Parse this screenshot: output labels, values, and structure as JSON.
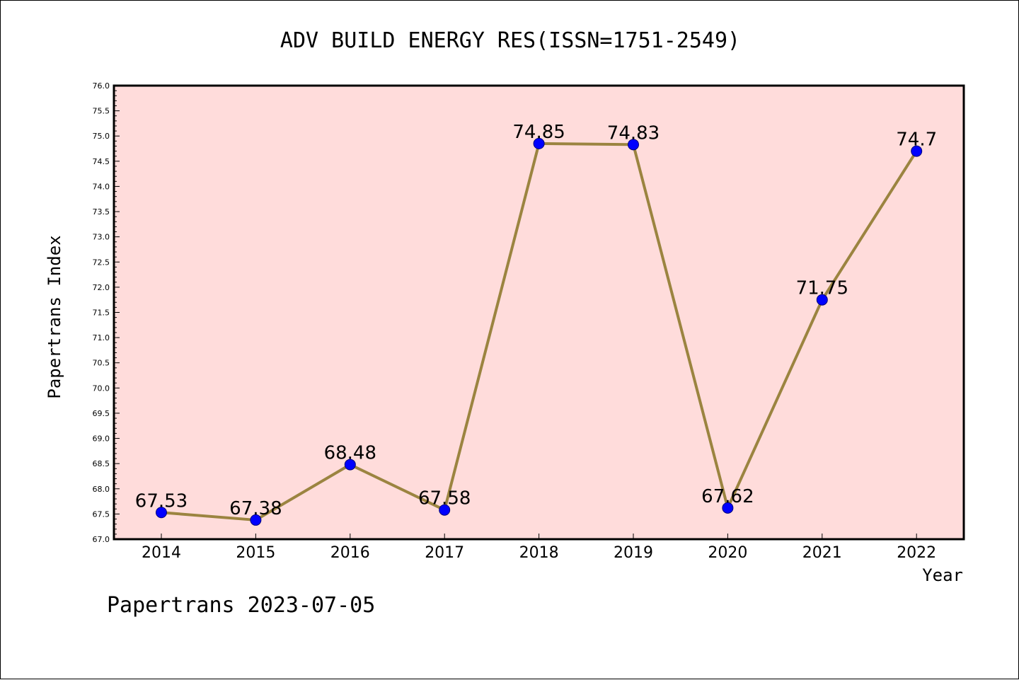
{
  "chart_data": {
    "type": "line",
    "title": "ADV BUILD ENERGY RES(ISSN=1751-2549)",
    "xlabel": "Year",
    "ylabel": "Papertrans Index",
    "categories": [
      "2014",
      "2015",
      "2016",
      "2017",
      "2018",
      "2019",
      "2020",
      "2021",
      "2022"
    ],
    "values": [
      67.53,
      67.38,
      68.48,
      67.58,
      74.85,
      74.83,
      67.62,
      71.75,
      74.7
    ],
    "data_labels": [
      "67.53",
      "67.38",
      "68.48",
      "67.58",
      "74.85",
      "74.83",
      "67.62",
      "71.75",
      "74.7"
    ],
    "ylim": [
      67.0,
      76.0
    ],
    "yticks": [
      "67.0",
      "67.5",
      "68.0",
      "68.5",
      "69.0",
      "69.5",
      "70.0",
      "70.5",
      "71.0",
      "71.5",
      "72.0",
      "72.5",
      "73.0",
      "73.5",
      "74.0",
      "74.5",
      "75.0",
      "75.5",
      "76.0"
    ],
    "grid": false,
    "legend": "none",
    "colors": {
      "plot_background": "#ffdcdb",
      "line": "#9b8440",
      "marker_fill": "#0000ff",
      "marker_edge": "#00007a"
    }
  },
  "footer": {
    "text": "Papertrans 2023-07-05"
  }
}
